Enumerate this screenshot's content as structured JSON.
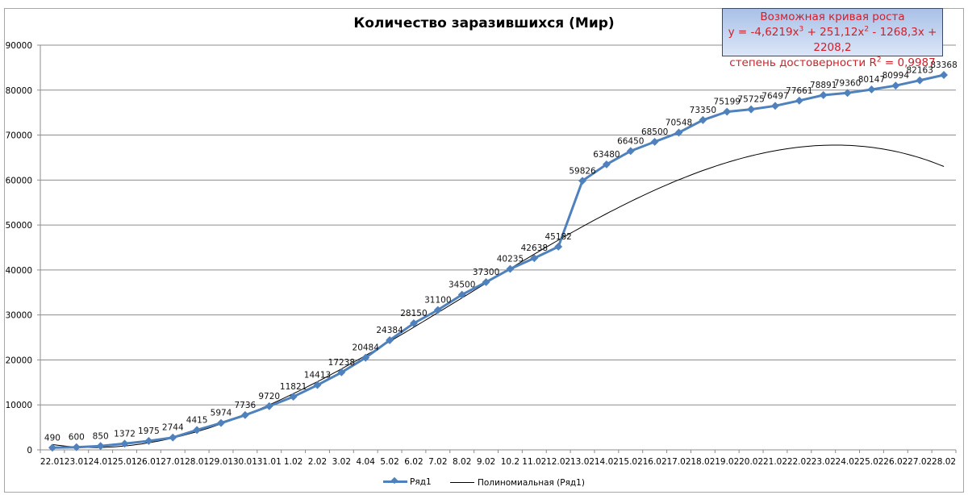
{
  "chart_data": {
    "type": "line",
    "title": "Количество заразившихся (Мир)",
    "xlabel": "",
    "ylabel": "",
    "ylim": [
      0,
      90000
    ],
    "yticks": [
      0,
      10000,
      20000,
      30000,
      40000,
      50000,
      60000,
      70000,
      80000,
      90000
    ],
    "grid": true,
    "legend_position": "bottom",
    "categories": [
      "22.01",
      "23.01",
      "24.01",
      "25.01",
      "26.01",
      "27.01",
      "28.01",
      "29.01",
      "30.01",
      "31.01",
      "1.02",
      "2.02",
      "3.02",
      "4.04",
      "5.02",
      "6.02",
      "7.02",
      "8.02",
      "9.02",
      "10.2",
      "11.02",
      "12.02",
      "13.02",
      "14.02",
      "15.02",
      "16.02",
      "17.02",
      "18.02",
      "19.02",
      "20.02",
      "21.02",
      "22.02",
      "23.02",
      "24.02",
      "25.02",
      "26.02",
      "27.02",
      "28.02"
    ],
    "series": [
      {
        "name": "Ряд1",
        "color": "#4f81bd",
        "marker": "diamond",
        "values": [
          490,
          600,
          850,
          1372,
          1975,
          2744,
          4415,
          5974,
          7736,
          9720,
          11821,
          14413,
          17238,
          20484,
          24384,
          28150,
          31100,
          34500,
          37300,
          40235,
          42638,
          45182,
          59826,
          63480,
          66450,
          68500,
          70548,
          73350,
          75199,
          75725,
          76497,
          77661,
          78891,
          79360,
          80147,
          80994,
          82163,
          83368
        ]
      },
      {
        "name": "Полиномиальная (Ряд1)",
        "color": "#000000",
        "type": "trendline-poly3",
        "coefficients": {
          "a3": -4.6219,
          "a2": 251.12,
          "a1": -1268.3,
          "a0": 2208.2
        }
      }
    ],
    "annotation": {
      "line1": "Возможная кривая роста",
      "line2": "y = -4,6219x³ + 251,12x² - 1268,3x + 2208,2",
      "line3": "степень достоверности R² = 0,9987",
      "text_color": "#d0202a"
    }
  },
  "title": "Количество заразившихся (Мир)",
  "equation_box": {
    "line1": "Возможная кривая роста",
    "line2_prefix": "y = -4,6219x",
    "line2_mid1": " + 251,12x",
    "line2_mid2": " - 1268,3x + 2208,2",
    "sup3": "3",
    "sup2": "2",
    "line3_prefix": "степень достоверности R",
    "line3_suffix": " = 0,9987"
  },
  "legend": {
    "series_label": "Ряд1",
    "trend_label": "Полиномиальная (Ряд1)"
  }
}
